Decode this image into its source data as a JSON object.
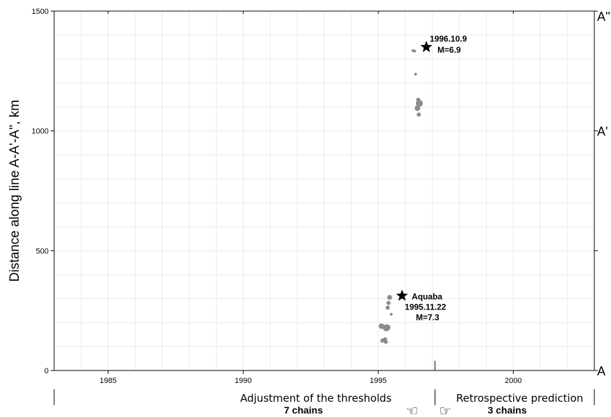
{
  "chart_data": {
    "type": "scatter",
    "ylabel": "Distance along line A-A'-A'', km",
    "xlim": [
      1983,
      2003
    ],
    "ylim": [
      0,
      1500
    ],
    "grid": true,
    "x_ticks": [
      "1985",
      "1990",
      "1995",
      "2000"
    ],
    "y_ticks": [
      "0",
      "500",
      "1000",
      "1500"
    ],
    "right_markers": [
      {
        "label": "A",
        "y": 0
      },
      {
        "label": "A'",
        "y": 1000
      },
      {
        "label": "A''",
        "y": 1500
      }
    ],
    "points": [
      {
        "x": 1995.15,
        "y": 125,
        "size": 3
      },
      {
        "x": 1995.28,
        "y": 120,
        "size": 3
      },
      {
        "x": 1995.25,
        "y": 130,
        "size": 3
      },
      {
        "x": 1995.12,
        "y": 185,
        "size": 4
      },
      {
        "x": 1995.3,
        "y": 178,
        "size": 5
      },
      {
        "x": 1995.35,
        "y": 180,
        "size": 4
      },
      {
        "x": 1995.48,
        "y": 235,
        "size": 2
      },
      {
        "x": 1995.35,
        "y": 262,
        "size": 3
      },
      {
        "x": 1995.38,
        "y": 282,
        "size": 3
      },
      {
        "x": 1995.42,
        "y": 305,
        "size": 3.5
      },
      {
        "x": 1996.28,
        "y": 1335,
        "size": 2
      },
      {
        "x": 1996.35,
        "y": 1333,
        "size": 2
      },
      {
        "x": 1996.38,
        "y": 1237,
        "size": 2
      },
      {
        "x": 1996.48,
        "y": 1130,
        "size": 3
      },
      {
        "x": 1996.52,
        "y": 1115,
        "size": 5
      },
      {
        "x": 1996.45,
        "y": 1095,
        "size": 4
      },
      {
        "x": 1996.5,
        "y": 1068,
        "size": 3
      }
    ],
    "events": [
      {
        "x": 1995.88,
        "y": 312,
        "lines": [
          "Aquaba",
          "1995.11.22",
          "M=7.3"
        ]
      },
      {
        "x": 1996.78,
        "y": 1350,
        "lines": [
          "1996.10.9",
          "M=6.9"
        ]
      }
    ],
    "phase_divider_x": 1997.1,
    "phases": [
      {
        "label": "Adjustment of the thresholds",
        "count": "7 chains"
      },
      {
        "label": "Retrospective prediction",
        "count": "3 chains"
      }
    ],
    "colors": {
      "points": "#8c8c8c",
      "grid": "#e4e4e4",
      "axis": "#000000"
    }
  }
}
